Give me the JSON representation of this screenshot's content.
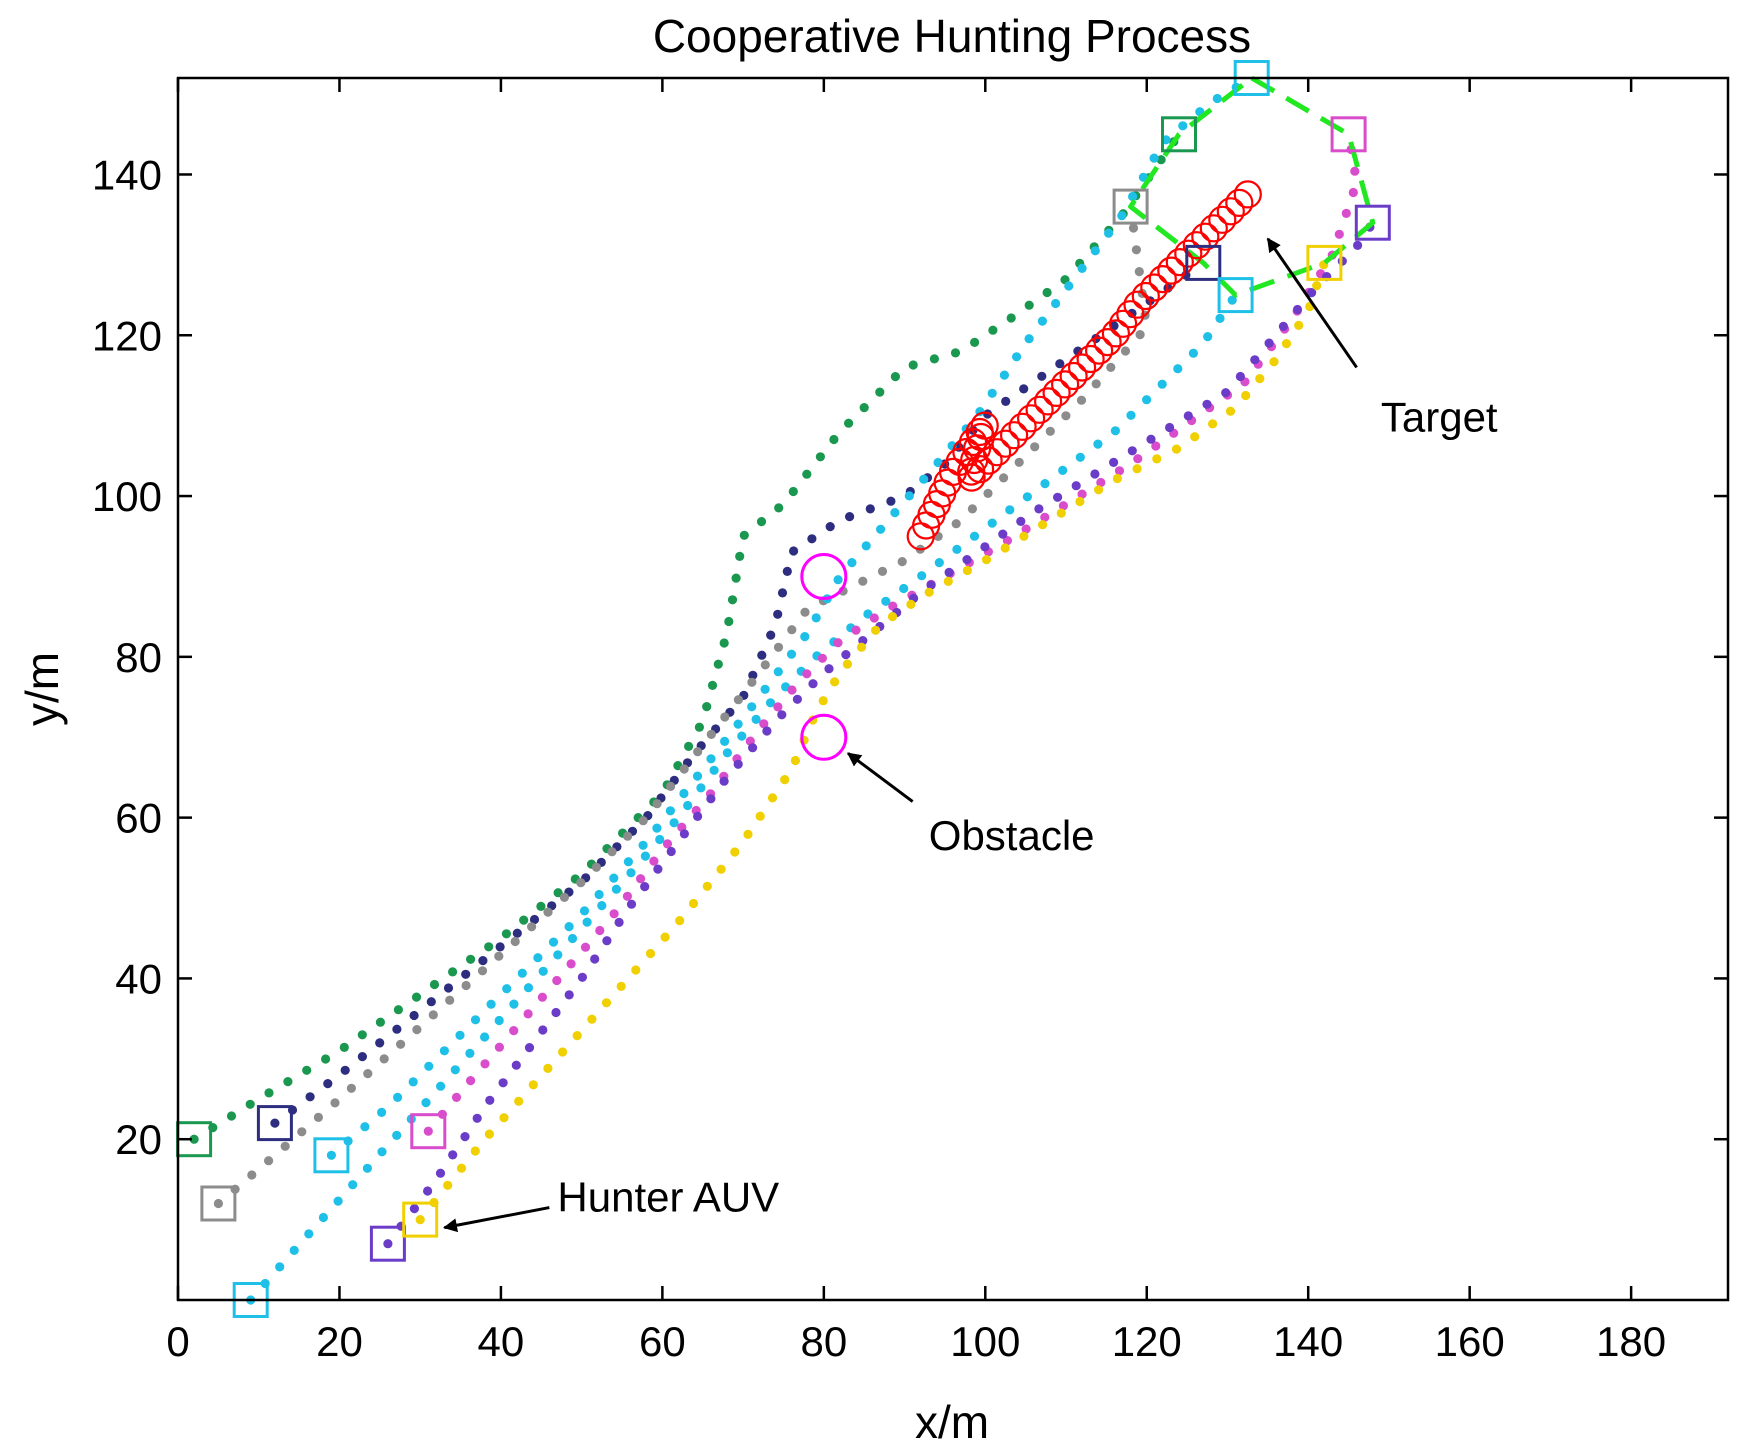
{
  "chart_data": {
    "type": "scatter",
    "title": "Cooperative Hunting Process",
    "xlabel": "x/m",
    "ylabel": "y/m",
    "xlim": [
      0,
      192
    ],
    "ylim": [
      0,
      152
    ],
    "xticks": [
      0,
      20,
      40,
      60,
      80,
      100,
      120,
      140,
      160,
      180
    ],
    "yticks": [
      20,
      40,
      60,
      80,
      100,
      120,
      140
    ],
    "grid": false,
    "hunters": [
      {
        "color": "#1a9850",
        "start": [
          2,
          20
        ],
        "end": [
          124,
          145
        ],
        "path": [
          [
            2,
            20
          ],
          [
            10,
            25
          ],
          [
            20,
            31
          ],
          [
            30,
            38
          ],
          [
            40,
            45
          ],
          [
            50,
            53
          ],
          [
            60,
            63
          ],
          [
            65,
            72
          ],
          [
            68,
            83
          ],
          [
            70,
            95
          ],
          [
            75,
            99
          ],
          [
            82,
            108
          ],
          [
            90,
            116
          ],
          [
            97,
            118
          ],
          [
            103,
            122
          ],
          [
            110,
            127
          ],
          [
            117,
            135
          ],
          [
            124,
            145
          ]
        ]
      },
      {
        "color": "#2e2e80",
        "start": [
          12,
          22
        ],
        "end": [
          127,
          129
        ],
        "path": [
          [
            12,
            22
          ],
          [
            20,
            28
          ],
          [
            30,
            36
          ],
          [
            40,
            44
          ],
          [
            50,
            52
          ],
          [
            58,
            60
          ],
          [
            64,
            68
          ],
          [
            70,
            75
          ],
          [
            74,
            84
          ],
          [
            76,
            93
          ],
          [
            82,
            97
          ],
          [
            90,
            100
          ],
          [
            95,
            104
          ],
          [
            100,
            110
          ],
          [
            110,
            117
          ],
          [
            120,
            124
          ],
          [
            127,
            129
          ]
        ]
      },
      {
        "color": "#8c8c8c",
        "start": [
          5,
          12
        ],
        "end": [
          118,
          136
        ],
        "path": [
          [
            5,
            12
          ],
          [
            12,
            18
          ],
          [
            20,
            25
          ],
          [
            30,
            34
          ],
          [
            40,
            43
          ],
          [
            50,
            52
          ],
          [
            58,
            60
          ],
          [
            65,
            69
          ],
          [
            72,
            78
          ],
          [
            78,
            86
          ],
          [
            84,
            89
          ],
          [
            90,
            92
          ],
          [
            97,
            97
          ],
          [
            104,
            104
          ],
          [
            112,
            112
          ],
          [
            120,
            121
          ],
          [
            118,
            136
          ]
        ]
      },
      {
        "color": "#1ec0e8",
        "start": [
          19,
          18
        ],
        "end": [
          133,
          152
        ],
        "path": [
          [
            19,
            18
          ],
          [
            26,
            24
          ],
          [
            34,
            32
          ],
          [
            42,
            40
          ],
          [
            50,
            48
          ],
          [
            58,
            57
          ],
          [
            65,
            66
          ],
          [
            72,
            75
          ],
          [
            78,
            83
          ],
          [
            82,
            90
          ],
          [
            88,
            97
          ],
          [
            94,
            104
          ],
          [
            99,
            110
          ],
          [
            105,
            119
          ],
          [
            111,
            127
          ],
          [
            117,
            135
          ],
          [
            122,
            144
          ],
          [
            128,
            149
          ],
          [
            133,
            152
          ]
        ]
      },
      {
        "color": "#1ec0e8",
        "start": [
          9,
          0
        ],
        "end": [
          131,
          125
        ],
        "path": [
          [
            9,
            0
          ],
          [
            16,
            8
          ],
          [
            24,
            17
          ],
          [
            32,
            26
          ],
          [
            40,
            35
          ],
          [
            48,
            44
          ],
          [
            56,
            53
          ],
          [
            62,
            60
          ],
          [
            68,
            68
          ],
          [
            74,
            75
          ],
          [
            79,
            80
          ],
          [
            85,
            85
          ],
          [
            92,
            90
          ],
          [
            100,
            96
          ],
          [
            108,
            102
          ],
          [
            116,
            108
          ],
          [
            122,
            114
          ],
          [
            127,
            119
          ],
          [
            131,
            125
          ]
        ]
      },
      {
        "color": "#d94ccc",
        "start": [
          31,
          21
        ],
        "end": [
          145,
          145
        ],
        "path": [
          [
            31,
            21
          ],
          [
            36,
            27
          ],
          [
            42,
            34
          ],
          [
            48,
            41
          ],
          [
            54,
            48
          ],
          [
            60,
            56
          ],
          [
            66,
            63
          ],
          [
            72,
            71
          ],
          [
            77,
            77
          ],
          [
            82,
            82
          ],
          [
            88,
            86
          ],
          [
            95,
            90
          ],
          [
            102,
            94
          ],
          [
            110,
            99
          ],
          [
            118,
            104
          ],
          [
            125,
            109
          ],
          [
            132,
            114
          ],
          [
            138,
            122
          ],
          [
            143,
            130
          ],
          [
            146,
            139
          ],
          [
            145,
            145
          ]
        ]
      },
      {
        "color": "#6a3cc8",
        "start": [
          26,
          7
        ],
        "end": [
          148,
          134
        ],
        "path": [
          [
            26,
            7
          ],
          [
            32,
            15
          ],
          [
            38,
            24
          ],
          [
            44,
            32
          ],
          [
            50,
            40
          ],
          [
            56,
            49
          ],
          [
            62,
            57
          ],
          [
            68,
            65
          ],
          [
            74,
            72
          ],
          [
            80,
            78
          ],
          [
            86,
            83
          ],
          [
            92,
            88
          ],
          [
            99,
            93
          ],
          [
            106,
            98
          ],
          [
            114,
            103
          ],
          [
            122,
            108
          ],
          [
            130,
            113
          ],
          [
            136,
            120
          ],
          [
            141,
            126
          ],
          [
            146,
            131
          ],
          [
            148,
            134
          ]
        ]
      },
      {
        "color": "#f0d000",
        "start": [
          30,
          10
        ],
        "end": [
          142,
          129
        ],
        "path": [
          [
            30,
            10
          ],
          [
            38,
            20
          ],
          [
            46,
            29
          ],
          [
            54,
            38
          ],
          [
            62,
            47
          ],
          [
            70,
            57
          ],
          [
            76,
            66
          ],
          [
            79,
            73
          ],
          [
            82,
            78
          ],
          [
            87,
            84
          ],
          [
            93,
            88
          ],
          [
            100,
            92
          ],
          [
            108,
            97
          ],
          [
            116,
            102
          ],
          [
            124,
            106
          ],
          [
            131,
            111
          ],
          [
            136,
            117
          ],
          [
            140,
            123
          ],
          [
            142,
            129
          ]
        ]
      }
    ],
    "target": {
      "color": "#ff0000",
      "path": [
        [
          92,
          95
        ],
        [
          94,
          99
        ],
        [
          96,
          103
        ],
        [
          98,
          106
        ],
        [
          100,
          109
        ],
        [
          99,
          106
        ],
        [
          98,
          102
        ],
        [
          101,
          105
        ],
        [
          104,
          108
        ],
        [
          107,
          111
        ],
        [
          110,
          114
        ],
        [
          113,
          117
        ],
        [
          116,
          120
        ],
        [
          119,
          124
        ],
        [
          122,
          127
        ],
        [
          125,
          130
        ],
        [
          128,
          133
        ],
        [
          131,
          136
        ],
        [
          133,
          138
        ]
      ]
    },
    "obstacles": [
      [
        80,
        90
      ],
      [
        80,
        70
      ]
    ],
    "encircle": {
      "color": "#22e822",
      "path": [
        [
          133,
          152
        ],
        [
          145,
          145
        ],
        [
          148,
          134
        ],
        [
          142,
          129
        ],
        [
          131,
          125
        ],
        [
          127,
          129
        ],
        [
          118,
          136
        ],
        [
          124,
          145
        ],
        [
          133,
          152
        ]
      ]
    },
    "annotations": [
      {
        "text": "Target",
        "text_at": [
          149,
          108
        ],
        "arrow_from": [
          146,
          116
        ],
        "arrow_to": [
          135,
          132
        ]
      },
      {
        "text": "Obstacle",
        "text_at": [
          93,
          56
        ],
        "arrow_from": [
          91,
          62
        ],
        "arrow_to": [
          83,
          68
        ]
      },
      {
        "text": "Hunter AUV",
        "text_at": [
          47,
          11
        ],
        "arrow_from": [
          46,
          11.5
        ],
        "arrow_to": [
          33,
          9
        ]
      }
    ]
  }
}
